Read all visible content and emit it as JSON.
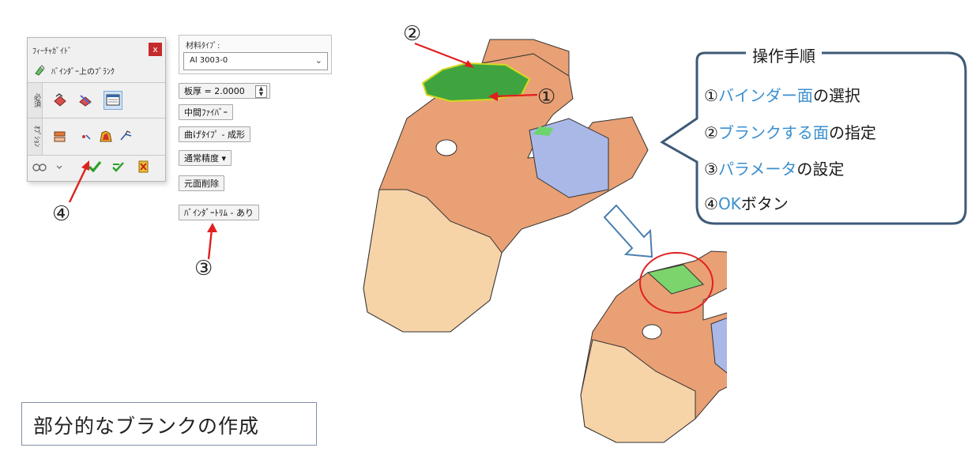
{
  "panel": {
    "title": "ﾌｨｰﾁｬｶﾞｲﾄﾞ",
    "close_label": "x",
    "mode_label": "ﾊﾞｲﾝﾀﾞｰ上のﾌﾞﾗﾝｸ",
    "required_group_label": "必須",
    "options_group_label": "ｵﾌﾟｼｮﾝ"
  },
  "options": {
    "material_type_label": "材料ﾀｲﾌﾟ:",
    "material_type_value": "Al 3003-0",
    "thickness_label": "板厚 = 2.0000",
    "mid_fiber_label": "中間ﾌｧｲﾊﾞｰ",
    "bend_type_label": "曲げﾀｲﾌﾟ - 成形",
    "precision_label": "通常精度 ▾",
    "remove_face_label": "元面削除",
    "binder_trim_label": "ﾊﾞｲﾝﾀﾞｰﾄﾘﾑ - あり"
  },
  "markers": {
    "m1": "①",
    "m2": "②",
    "m3": "③",
    "m4": "④"
  },
  "callout": {
    "title": "操作手順",
    "steps": [
      {
        "num": "①",
        "hl": "バインダー面",
        "rest": "の選択"
      },
      {
        "num": "②",
        "hl": "ブランクする面",
        "rest": "の指定"
      },
      {
        "num": "③",
        "hl": "パラメータ",
        "rest": "の設定"
      },
      {
        "num": "④",
        "hl": "OK",
        "rest": "ボタン"
      }
    ]
  },
  "caption": "部分的なブランクの作成",
  "colors": {
    "part": "#e9a074",
    "part_dark": "#c77a52",
    "part_light": "#f7d3a8",
    "green_face": "#3fa43f",
    "blue_face": "#a9b8e6",
    "arrow_red": "#e02020",
    "callout_border": "#3d5a78",
    "highlight_text": "#3a8fcf"
  },
  "icons": [
    "pencil-icon",
    "check-icon",
    "close-icon",
    "arrow-icon"
  ]
}
